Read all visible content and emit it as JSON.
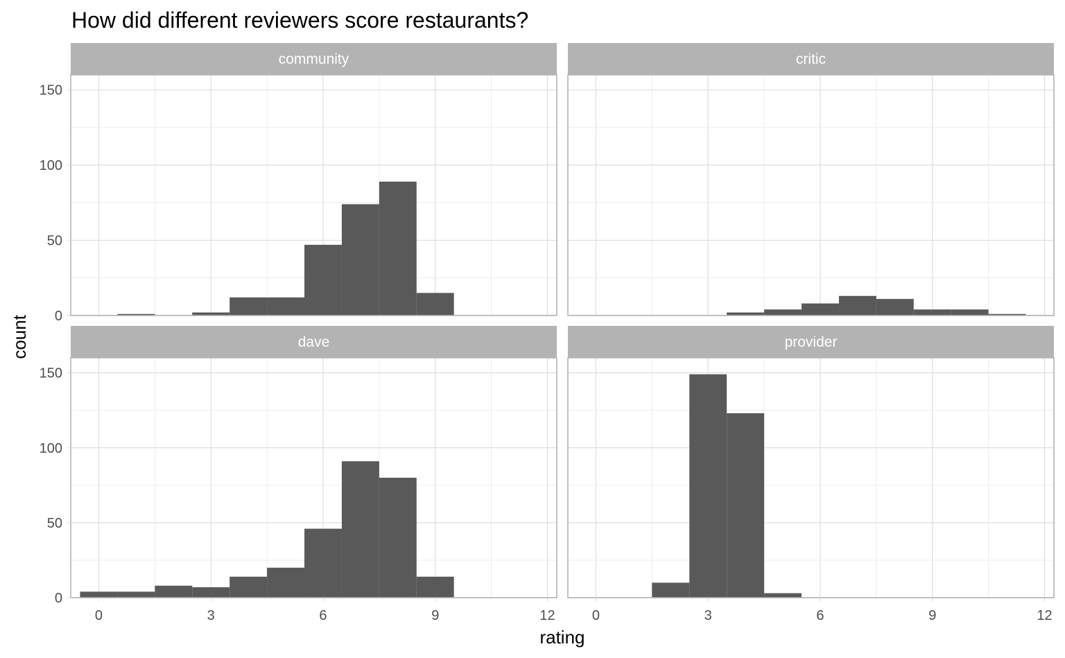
{
  "chart_data": {
    "type": "bar",
    "title": "How did different reviewers score restaurants?",
    "xlabel": "rating",
    "ylabel": "count",
    "xlim": [
      -0.75,
      12.25
    ],
    "ylim": [
      0,
      160
    ],
    "x_ticks": [
      0,
      3,
      6,
      9,
      12
    ],
    "y_ticks": [
      0,
      50,
      100,
      150
    ],
    "bin_width": 1,
    "grid": true,
    "panels": [
      {
        "name": "community",
        "bins": [
          {
            "x": 1,
            "count": 1
          },
          {
            "x": 3,
            "count": 2
          },
          {
            "x": 4,
            "count": 12
          },
          {
            "x": 5,
            "count": 12
          },
          {
            "x": 6,
            "count": 47
          },
          {
            "x": 7,
            "count": 74
          },
          {
            "x": 8,
            "count": 89
          },
          {
            "x": 9,
            "count": 15
          }
        ]
      },
      {
        "name": "critic",
        "bins": [
          {
            "x": 4,
            "count": 2
          },
          {
            "x": 5,
            "count": 4
          },
          {
            "x": 6,
            "count": 8
          },
          {
            "x": 7,
            "count": 13
          },
          {
            "x": 8,
            "count": 11
          },
          {
            "x": 9,
            "count": 4
          },
          {
            "x": 10,
            "count": 4
          },
          {
            "x": 11,
            "count": 1
          }
        ]
      },
      {
        "name": "dave",
        "bins": [
          {
            "x": 0,
            "count": 4
          },
          {
            "x": 1,
            "count": 4
          },
          {
            "x": 2,
            "count": 8
          },
          {
            "x": 3,
            "count": 7
          },
          {
            "x": 4,
            "count": 14
          },
          {
            "x": 5,
            "count": 20
          },
          {
            "x": 6,
            "count": 46
          },
          {
            "x": 7,
            "count": 91
          },
          {
            "x": 8,
            "count": 80
          },
          {
            "x": 9,
            "count": 14
          }
        ]
      },
      {
        "name": "provider",
        "bins": [
          {
            "x": 2,
            "count": 10
          },
          {
            "x": 3,
            "count": 149
          },
          {
            "x": 4,
            "count": 123
          },
          {
            "x": 5,
            "count": 3
          }
        ]
      }
    ],
    "colors": {
      "bar": "#595959",
      "strip": "#b3b3b3",
      "grid_major": "#dedede",
      "grid_minor": "#ececec",
      "panel_border": "#b3b3b3",
      "tick_text": "#4d4d4d"
    }
  }
}
